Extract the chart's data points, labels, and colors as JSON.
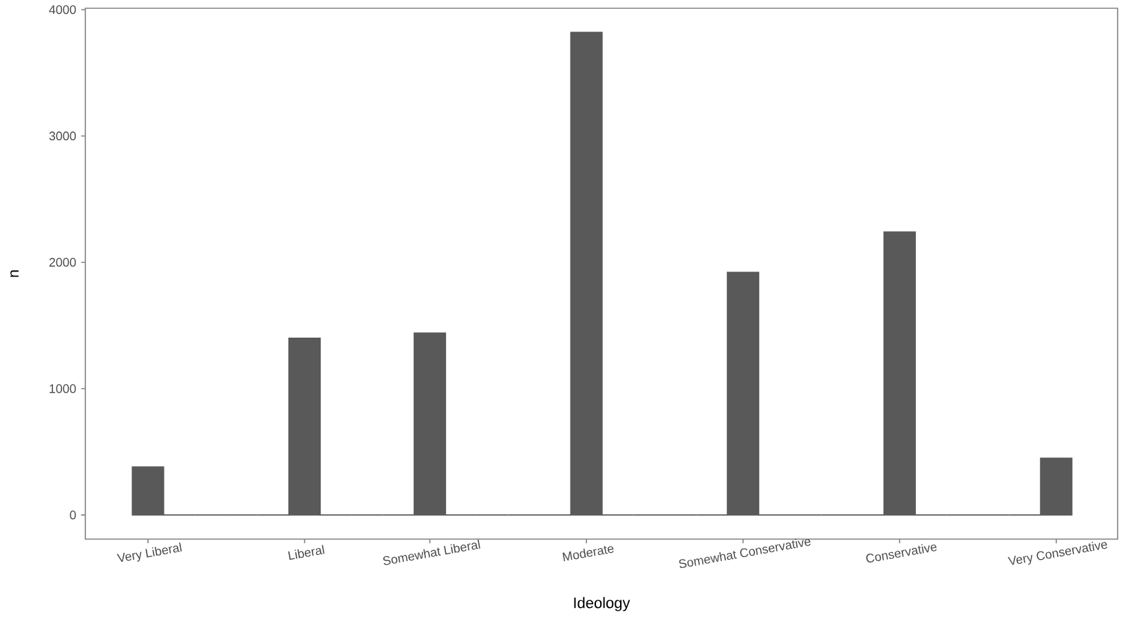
{
  "chart_data": {
    "type": "bar",
    "xlabel": "Ideology",
    "ylabel": "n",
    "color": "#595959",
    "categories": [
      "Very Liberal",
      null,
      null,
      null,
      null,
      "Liberal",
      null,
      null,
      null,
      "Somewhat Liberal",
      null,
      null,
      null,
      null,
      "Moderate",
      null,
      null,
      null,
      null,
      "Somewhat Conservative",
      null,
      null,
      null,
      null,
      "Conservative",
      null,
      null,
      null,
      null,
      "Very Conservative"
    ],
    "values": [
      380,
      0,
      0,
      0,
      0,
      1400,
      0,
      0,
      0,
      1440,
      0,
      0,
      0,
      0,
      3820,
      0,
      0,
      0,
      0,
      1920,
      0,
      0,
      0,
      0,
      2240,
      0,
      0,
      0,
      0,
      450
    ],
    "ylim": [
      -191,
      4011
    ],
    "yticks": [
      0,
      1000,
      2000,
      3000,
      4000
    ]
  }
}
